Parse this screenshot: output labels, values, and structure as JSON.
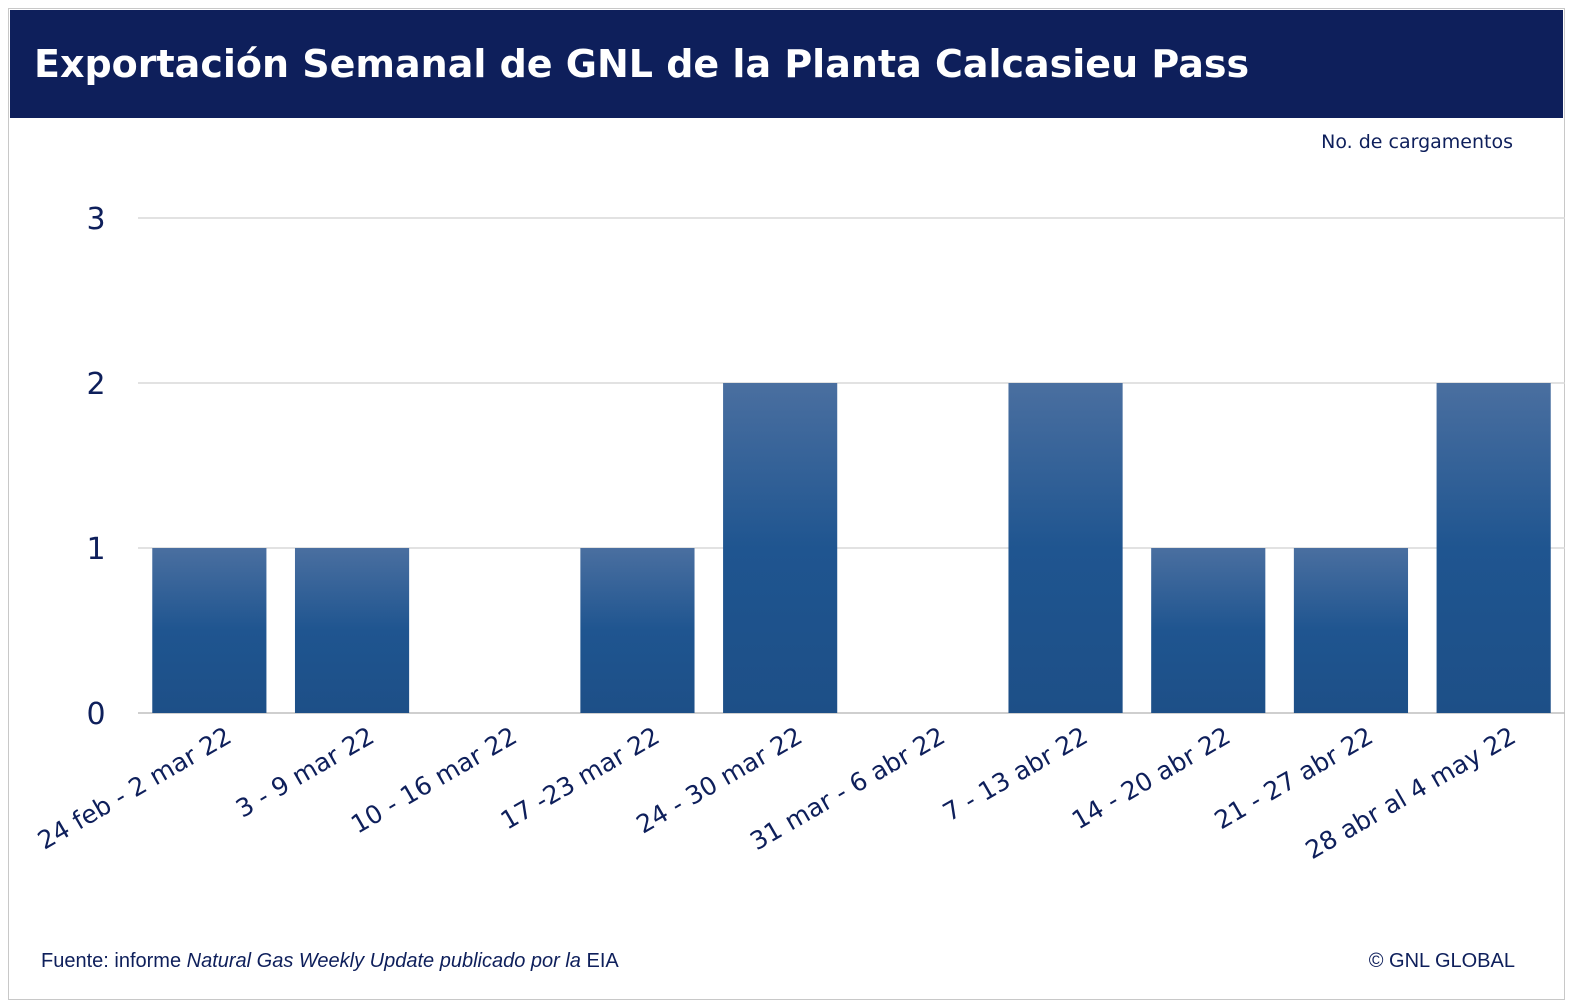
{
  "header": {
    "title": "Exportación Semanal de GNL de la Planta Calcasieu Pass"
  },
  "footer": {
    "source_prefix": "Fuente: informe ",
    "source_italic": "Natural Gas Weekly Update publicado por la",
    "source_suffix": " EIA",
    "copyright": "© GNL GLOBAL"
  },
  "colors": {
    "header_bg": "#0e1f5b",
    "text": "#0e1f5b",
    "bar_top": "#4a6fa0",
    "bar_bottom": "#1f5590",
    "grid": "#d9d9d9"
  },
  "chart_data": {
    "type": "bar",
    "title": "Exportación Semanal de GNL de la Planta Calcasieu Pass",
    "ylabel": "No. de cargamentos",
    "xlabel": "",
    "categories": [
      "24 feb  - 2 mar 22",
      "3 - 9 mar 22",
      "10 - 16 mar 22",
      "17 -23 mar 22",
      "24 - 30 mar 22",
      "31 mar - 6 abr 22",
      "7 - 13 abr 22",
      "14 - 20 abr 22",
      "21 - 27 abr 22",
      "28 abr al 4 may 22"
    ],
    "values": [
      1,
      1,
      0,
      1,
      2,
      0,
      2,
      1,
      1,
      2
    ],
    "ylim": [
      0,
      3
    ],
    "yticks": [
      0,
      1,
      2,
      3
    ],
    "grid": true,
    "legend": "none"
  }
}
